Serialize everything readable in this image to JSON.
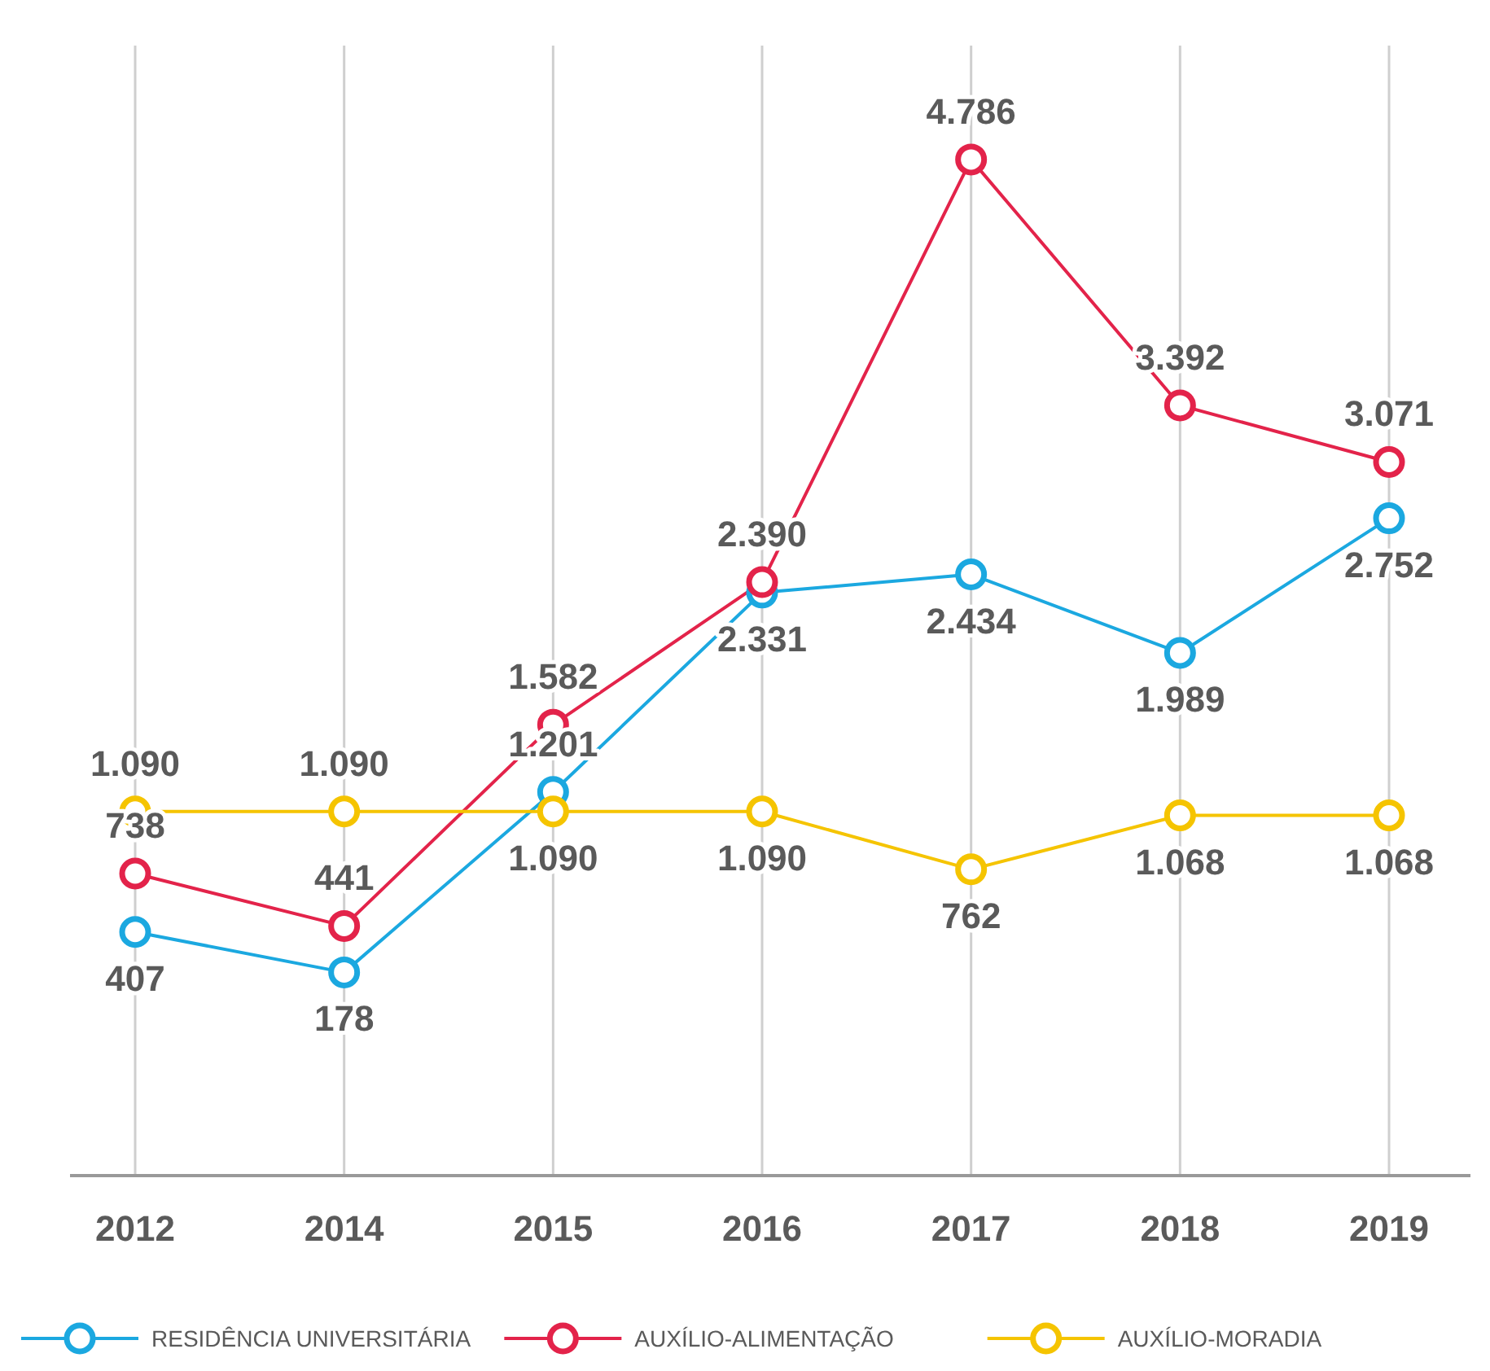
{
  "chart_data": {
    "type": "line",
    "categories": [
      "2012",
      "2014",
      "2015",
      "2016",
      "2017",
      "2018",
      "2019"
    ],
    "tick_labels": "x",
    "grid": "x",
    "legend": "bottom",
    "marker": "circle",
    "line_style": "solid",
    "series": [
      {
        "name": "RESIDÊNCIA UNIVERSITÁRIA",
        "color": "#1ba8e0",
        "values": [
          407,
          178,
          1201,
          2331,
          2434,
          1989,
          2752
        ],
        "value_labels": [
          "407",
          "178",
          "1.201",
          "2.331",
          "2.434",
          "1.989",
          "2.752"
        ]
      },
      {
        "name": "AUXÍLIO-ALIMENTAÇÃO",
        "color": "#e3234a",
        "values": [
          738,
          441,
          1582,
          2390,
          4786,
          3392,
          3071
        ],
        "value_labels": [
          "738",
          "441",
          "1.582",
          "2.390",
          "4.786",
          "3.392",
          "3.071"
        ]
      },
      {
        "name": "AUXÍLIO-MORADIA",
        "color": "#f5c400",
        "values": [
          1090,
          1090,
          1090,
          1090,
          762,
          1068,
          1068
        ],
        "value_labels": [
          "1.090",
          "1.090",
          "1.090",
          "1.090",
          "762",
          "1.068",
          "1.068"
        ]
      }
    ]
  }
}
